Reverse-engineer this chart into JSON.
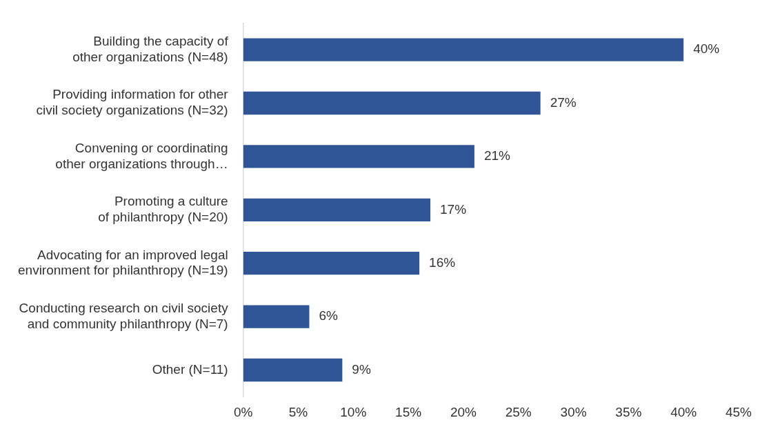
{
  "chart_data": {
    "type": "bar",
    "orientation": "horizontal",
    "categories": [
      "Building the capacity of\nother organizations (N=48)",
      "Providing information for other\ncivil society organizations (N=32)",
      "Convening or coordinating\nother organizations through…",
      "Promoting a culture\nof philanthropy (N=20)",
      "Advocating for an improved legal\nenvironment for philanthropy (N=19)",
      "Conducting research on civil society\nand community philanthropy (N=7)",
      "Other (N=11)"
    ],
    "values": [
      40,
      27,
      21,
      17,
      16,
      6,
      9
    ],
    "value_labels": [
      "40%",
      "27%",
      "21%",
      "17%",
      "16%",
      "6%",
      "9%"
    ],
    "color": "#2f5597",
    "xlim": [
      0,
      45
    ],
    "xticks": [
      {
        "value": 0,
        "label": "0%"
      },
      {
        "value": 5,
        "label": "5%"
      },
      {
        "value": 10,
        "label": "10%"
      },
      {
        "value": 15,
        "label": "15%"
      },
      {
        "value": 20,
        "label": "20%"
      },
      {
        "value": 25,
        "label": "25%"
      },
      {
        "value": 30,
        "label": "30%"
      },
      {
        "value": 35,
        "label": "35%"
      },
      {
        "value": 40,
        "label": "40%"
      },
      {
        "value": 45,
        "label": "45%"
      }
    ],
    "grid": false,
    "legend": false
  }
}
